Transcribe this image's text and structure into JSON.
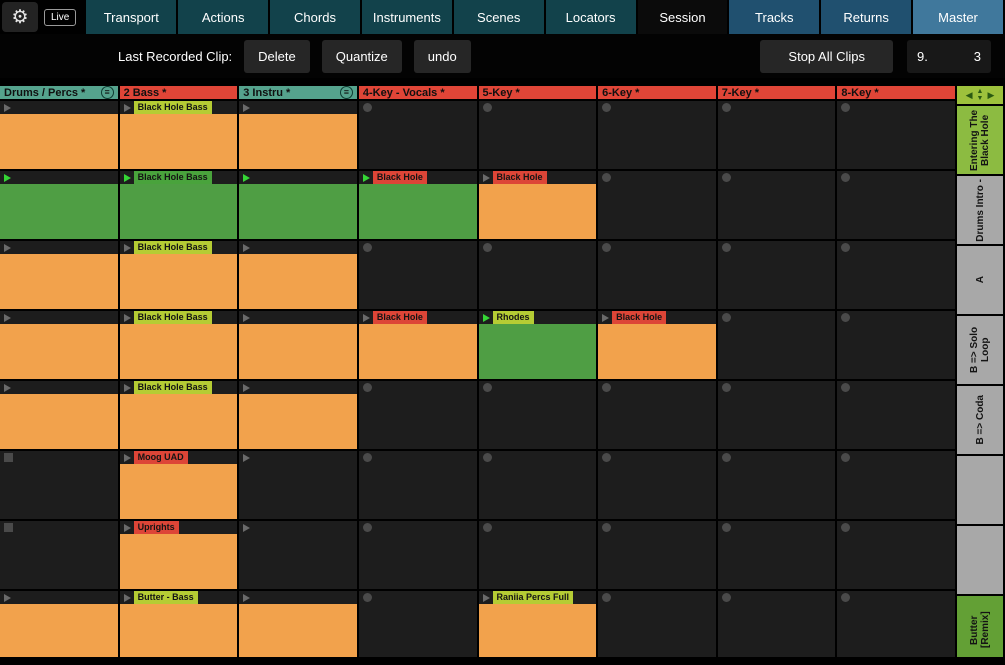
{
  "topbar": {
    "gear_icon": "⚙",
    "live_label": "Live",
    "tabs": [
      {
        "label": "Transport",
        "group": "teal"
      },
      {
        "label": "Actions",
        "group": "teal"
      },
      {
        "label": "Chords",
        "group": "teal"
      },
      {
        "label": "Instruments",
        "group": "teal"
      },
      {
        "label": "Scenes",
        "group": "teal"
      },
      {
        "label": "Locators",
        "group": "teal"
      },
      {
        "label": "Session",
        "group": "active"
      },
      {
        "label": "Tracks",
        "group": "blue"
      },
      {
        "label": "Returns",
        "group": "blue"
      },
      {
        "label": "Master",
        "group": "light"
      }
    ],
    "active_tab": "Session"
  },
  "toolbar": {
    "last_recorded_label": "Last Recorded Clip:",
    "delete_label": "Delete",
    "quantize_label": "Quantize",
    "undo_label": "undo",
    "stop_all_label": "Stop All Clips",
    "position": {
      "bar": "9.",
      "beat": "3"
    }
  },
  "colors": {
    "clip_orange": "#f2a24c",
    "clip_green": "#4f9e44",
    "strip_yellowgreen": "#b5cc34",
    "strip_red": "#dd4537",
    "strip_green": "#49a33c",
    "play_green": "#35d435",
    "play_gray": "#6a6a6a",
    "header_teal": "#55a38d",
    "header_red": "#e04537",
    "scene_green": "#8cbb41",
    "scene_dark_green": "#63a035",
    "scene_gray": "#a8a8a8"
  },
  "tracks": [
    {
      "name": "Drums / Percs *",
      "color": "teal",
      "menu_icon": true
    },
    {
      "name": "2 Bass *",
      "color": "red",
      "menu_icon": false
    },
    {
      "name": "3 Instru *",
      "color": "teal",
      "menu_icon": true
    },
    {
      "name": "4-Key - Vocals *",
      "color": "red",
      "menu_icon": false
    },
    {
      "name": "5-Key *",
      "color": "red",
      "menu_icon": false
    },
    {
      "name": "6-Key *",
      "color": "red",
      "menu_icon": false
    },
    {
      "name": "7-Key *",
      "color": "red",
      "menu_icon": false
    },
    {
      "name": "8-Key *",
      "color": "red",
      "menu_icon": false
    }
  ],
  "scene_nav_icons": {
    "left": "◀",
    "up": "▲",
    "down": "▼",
    "right": "▶"
  },
  "scenes": [
    {
      "label": "Entering The Black Hole",
      "color": "green"
    },
    {
      "label": "Drums Intro -",
      "color": "gray"
    },
    {
      "label": "A",
      "color": "gray"
    },
    {
      "label": "B => Solo Loop",
      "color": "gray"
    },
    {
      "label": "B => Coda",
      "color": "gray"
    },
    {
      "label": "",
      "color": "gray"
    },
    {
      "label": "",
      "color": "gray"
    },
    {
      "label": "Butter [Remix]",
      "color": "darkgreen"
    }
  ],
  "grid": {
    "rows": [
      {
        "cells": [
          {
            "type": "clip",
            "body": "orange",
            "play": "gray"
          },
          {
            "type": "clip",
            "body": "orange",
            "play": "gray",
            "strip": "yellowgreen",
            "label": "Black Hole Bass"
          },
          {
            "type": "clip",
            "body": "orange",
            "play": "gray"
          },
          {
            "type": "empty",
            "indicator": "circle"
          },
          {
            "type": "empty",
            "indicator": "circle"
          },
          {
            "type": "empty",
            "indicator": "circle"
          },
          {
            "type": "empty",
            "indicator": "circle"
          },
          {
            "type": "empty",
            "indicator": "circle"
          }
        ]
      },
      {
        "cells": [
          {
            "type": "clip",
            "body": "green",
            "play": "green"
          },
          {
            "type": "clip",
            "body": "green",
            "play": "green",
            "strip": "green",
            "label": "Black Hole Bass"
          },
          {
            "type": "clip",
            "body": "green",
            "play": "green"
          },
          {
            "type": "clip",
            "body": "green",
            "play": "green",
            "strip": "red",
            "label": "Black Hole"
          },
          {
            "type": "clip",
            "body": "orange",
            "play": "gray",
            "strip": "red",
            "label": "Black Hole"
          },
          {
            "type": "empty",
            "indicator": "circle"
          },
          {
            "type": "empty",
            "indicator": "circle"
          },
          {
            "type": "empty",
            "indicator": "circle"
          }
        ]
      },
      {
        "cells": [
          {
            "type": "clip",
            "body": "orange",
            "play": "gray"
          },
          {
            "type": "clip",
            "body": "orange",
            "play": "gray",
            "strip": "yellowgreen",
            "label": "Black Hole Bass"
          },
          {
            "type": "clip",
            "body": "orange",
            "play": "gray"
          },
          {
            "type": "empty",
            "indicator": "circle"
          },
          {
            "type": "empty",
            "indicator": "circle"
          },
          {
            "type": "empty",
            "indicator": "circle"
          },
          {
            "type": "empty",
            "indicator": "circle"
          },
          {
            "type": "empty",
            "indicator": "circle"
          }
        ]
      },
      {
        "cells": [
          {
            "type": "clip",
            "body": "orange",
            "play": "gray"
          },
          {
            "type": "clip",
            "body": "orange",
            "play": "gray",
            "strip": "yellowgreen",
            "label": "Black Hole Bass"
          },
          {
            "type": "clip",
            "body": "orange",
            "play": "gray"
          },
          {
            "type": "clip",
            "body": "orange",
            "play": "gray",
            "strip": "red",
            "label": "Black Hole"
          },
          {
            "type": "clip",
            "body": "green",
            "play": "green",
            "strip": "yellowgreen",
            "label": "Rhodes"
          },
          {
            "type": "clip",
            "body": "orange",
            "play": "gray",
            "strip": "red",
            "label": "Black Hole"
          },
          {
            "type": "empty",
            "indicator": "circle"
          },
          {
            "type": "empty",
            "indicator": "circle"
          }
        ]
      },
      {
        "cells": [
          {
            "type": "clip",
            "body": "orange",
            "play": "gray"
          },
          {
            "type": "clip",
            "body": "orange",
            "play": "gray",
            "strip": "yellowgreen",
            "label": "Black Hole Bass"
          },
          {
            "type": "clip",
            "body": "orange",
            "play": "gray"
          },
          {
            "type": "empty",
            "indicator": "circle"
          },
          {
            "type": "empty",
            "indicator": "circle"
          },
          {
            "type": "empty",
            "indicator": "circle"
          },
          {
            "type": "empty",
            "indicator": "circle"
          },
          {
            "type": "empty",
            "indicator": "circle"
          }
        ]
      },
      {
        "cells": [
          {
            "type": "empty",
            "indicator": "square"
          },
          {
            "type": "clip",
            "body": "orange",
            "play": "gray",
            "strip": "red",
            "label": "Moog UAD"
          },
          {
            "type": "empty",
            "play": "gray"
          },
          {
            "type": "empty",
            "indicator": "circle"
          },
          {
            "type": "empty",
            "indicator": "circle"
          },
          {
            "type": "empty",
            "indicator": "circle"
          },
          {
            "type": "empty",
            "indicator": "circle"
          },
          {
            "type": "empty",
            "indicator": "circle"
          }
        ]
      },
      {
        "cells": [
          {
            "type": "empty",
            "indicator": "square"
          },
          {
            "type": "clip",
            "body": "orange",
            "play": "gray",
            "strip": "red",
            "label": "Uprights"
          },
          {
            "type": "empty",
            "play": "gray"
          },
          {
            "type": "empty",
            "indicator": "circle"
          },
          {
            "type": "empty",
            "indicator": "circle"
          },
          {
            "type": "empty",
            "indicator": "circle"
          },
          {
            "type": "empty",
            "indicator": "circle"
          },
          {
            "type": "empty",
            "indicator": "circle"
          }
        ]
      },
      {
        "cells": [
          {
            "type": "clip",
            "body": "orange",
            "play": "gray"
          },
          {
            "type": "clip",
            "body": "orange",
            "play": "gray",
            "strip": "yellowgreen",
            "label": "Butter - Bass"
          },
          {
            "type": "clip",
            "body": "orange",
            "play": "gray"
          },
          {
            "type": "empty",
            "indicator": "circle"
          },
          {
            "type": "clip",
            "body": "orange",
            "play": "gray",
            "strip": "yellowgreen",
            "label": "Raniia Percs Full"
          },
          {
            "type": "empty",
            "indicator": "circle"
          },
          {
            "type": "empty",
            "indicator": "circle"
          },
          {
            "type": "empty",
            "indicator": "circle"
          }
        ]
      }
    ]
  }
}
